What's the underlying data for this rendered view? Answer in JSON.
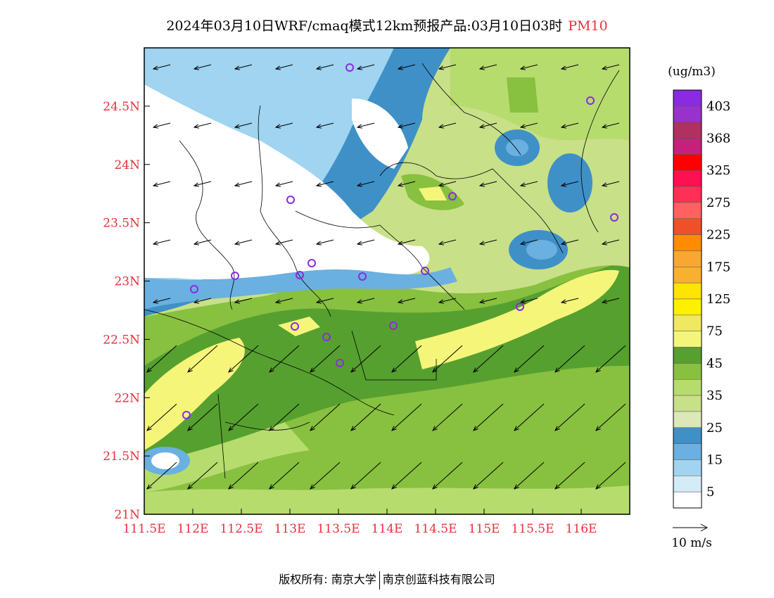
{
  "title": {
    "main": "2024年03月10日WRF/cmaq模式12km预报产品:03月10日03时",
    "pollutant": "PM10"
  },
  "map": {
    "lat_labels": [
      "24.5N",
      "24N",
      "23.5N",
      "23N",
      "22.5N",
      "22N",
      "21.5N",
      "21N"
    ],
    "lat_values": [
      24.5,
      24,
      23.5,
      23,
      22.5,
      22,
      21.5,
      21
    ],
    "lon_labels": [
      "111.5E",
      "112E",
      "112.5E",
      "113E",
      "113.5E",
      "114E",
      "114.5E",
      "115E",
      "115.5E",
      "116E"
    ],
    "lon_values": [
      111.5,
      112,
      112.5,
      113,
      113.5,
      114,
      114.5,
      115,
      115.5,
      116
    ],
    "extent": {
      "lon_min": 111.5,
      "lon_max": 116.5,
      "lat_min": 21,
      "lat_max": 25
    },
    "label_color": "#e8303a"
  },
  "legend": {
    "unit": "(ug/m3)",
    "labels": [
      "403",
      "368",
      "325",
      "275",
      "225",
      "175",
      "125",
      "75",
      "45",
      "35",
      "25",
      "15",
      "5"
    ],
    "colors_top_to_bottom": [
      "#8a2be2",
      "#9932cc",
      "#b03060",
      "#c8207a",
      "#ff0000",
      "#ff1050",
      "#ff2f55",
      "#ff6060",
      "#f05028",
      "#ff8c00",
      "#f8a830",
      "#f8b030",
      "#ffe400",
      "#fff000",
      "#f0e860",
      "#f5f57a",
      "#56a030",
      "#88c040",
      "#b6dc6e",
      "#c8e088",
      "#dde8b8",
      "#4090c8",
      "#6ab0e0",
      "#a0d4f0",
      "#d4ecf8",
      "#ffffff"
    ]
  },
  "wind_scale": {
    "label": "10 m/s"
  },
  "stations_count": 17,
  "footer": {
    "left": "版权所有: 南京大学",
    "right": "南京创蓝科技有限公司"
  }
}
